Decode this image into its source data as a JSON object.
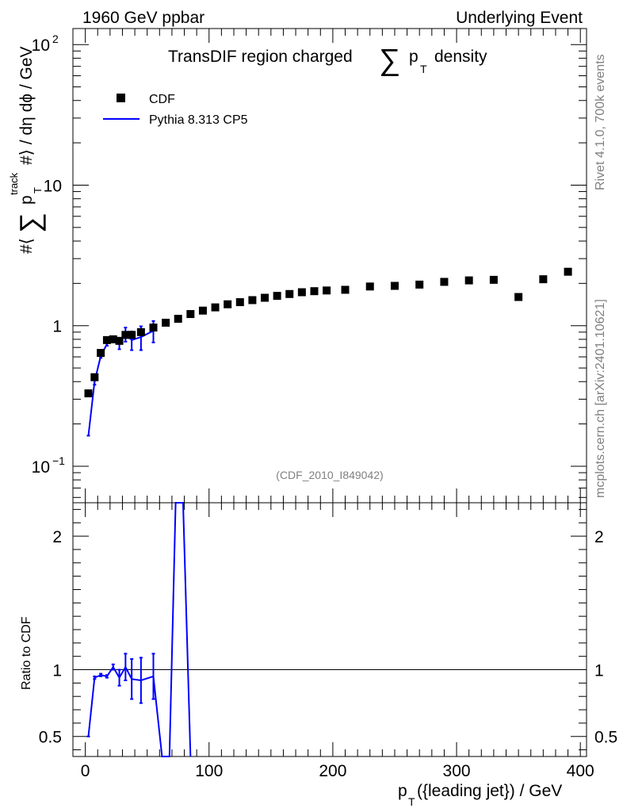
{
  "header": {
    "left": "1960 GeV ppbar",
    "right": "Underlying Event"
  },
  "plot": {
    "title": "TransDIF region charged",
    "title_sum": "∑",
    "title_p": "p",
    "title_sub": "T",
    "title_suffix": "density",
    "analysis_id": "(CDF_2010_I849042)"
  },
  "side_labels": {
    "rivet": "Rivet 4.1.0,  700k events",
    "mcplots": "mcplots.cern.ch [arXiv:2401.10621]"
  },
  "legend": {
    "data_label": "CDF",
    "mc_label": "Pythia 8.313 CP5"
  },
  "colors": {
    "data": "#000000",
    "mc": "#0000ff",
    "side_text": "#808080"
  },
  "chart_data": [
    {
      "type": "scatter",
      "panel": "main",
      "yscale": "log",
      "ylabel_prefix": "#⟨",
      "ylabel_sum": "∑",
      "ylabel_p": "p",
      "ylabel_sup": "track",
      "ylabel_sub": "T",
      "ylabel_suffix": "#⟩ / dη dϕ / GeV",
      "xlim": [
        -10,
        405
      ],
      "ylim": [
        0.055,
        130
      ],
      "yticks": [
        {
          "value": 0.1,
          "base": "10",
          "exp": "−1"
        },
        {
          "value": 1,
          "base": "1",
          "exp": ""
        },
        {
          "value": 10,
          "base": "10",
          "exp": ""
        },
        {
          "value": 100,
          "base": "10",
          "exp": "2"
        }
      ],
      "series": [
        {
          "name": "CDF",
          "style": "markers",
          "x": [
            2.5,
            7.5,
            12.5,
            17.5,
            22.5,
            27.5,
            32.5,
            37.5,
            45,
            55,
            65,
            75,
            85,
            95,
            105,
            115,
            125,
            135,
            145,
            155,
            165,
            175,
            185,
            195,
            210,
            230,
            250,
            270,
            290,
            310,
            330,
            350,
            370,
            390
          ],
          "y": [
            0.33,
            0.43,
            0.64,
            0.79,
            0.8,
            0.78,
            0.86,
            0.86,
            0.9,
            0.97,
            1.05,
            1.12,
            1.21,
            1.28,
            1.35,
            1.42,
            1.47,
            1.52,
            1.58,
            1.63,
            1.68,
            1.73,
            1.76,
            1.78,
            1.8,
            1.9,
            1.92,
            1.96,
            2.05,
            2.1,
            2.12,
            1.6,
            2.14,
            2.42
          ]
        },
        {
          "name": "Pythia 8.313 CP5",
          "style": "line",
          "x": [
            2.5,
            7.5,
            12.5,
            17.5,
            22.5,
            27.5,
            32.5,
            37.5,
            45,
            55
          ],
          "y": [
            0.165,
            0.4,
            0.61,
            0.74,
            0.81,
            0.74,
            0.87,
            0.79,
            0.83,
            0.92
          ],
          "yerr": [
            0,
            0.02,
            0.02,
            0.02,
            0.03,
            0.06,
            0.1,
            0.12,
            0.16,
            0.16
          ]
        }
      ]
    },
    {
      "type": "line",
      "panel": "ratio",
      "ylabel": "Ratio to CDF",
      "xlabel_p": "p",
      "xlabel_sub": "T",
      "xlabel_suffix": "({leading jet}) / GeV",
      "xlim": [
        -10,
        405
      ],
      "ylim": [
        0.35,
        2.25
      ],
      "xticks": [
        0,
        100,
        200,
        300,
        400
      ],
      "yticks": [
        0.5,
        1,
        2
      ],
      "reference": 1,
      "series": [
        {
          "name": "Pythia 8.313 CP5",
          "x": [
            2.5,
            7.5,
            12.5,
            17.5,
            22.5,
            27.5,
            32.5,
            37.5,
            45,
            55,
            62,
            68,
            73,
            79,
            85
          ],
          "y": [
            0.5,
            0.94,
            0.96,
            0.95,
            1.02,
            0.94,
            1.02,
            0.93,
            0.92,
            0.95,
            0.35,
            0.35,
            2.25,
            2.25,
            0.35
          ],
          "yerr": [
            0,
            0.01,
            0.01,
            0.01,
            0.02,
            0.06,
            0.1,
            0.15,
            0.17,
            0.17,
            0,
            0,
            0,
            0,
            0
          ]
        }
      ]
    }
  ]
}
